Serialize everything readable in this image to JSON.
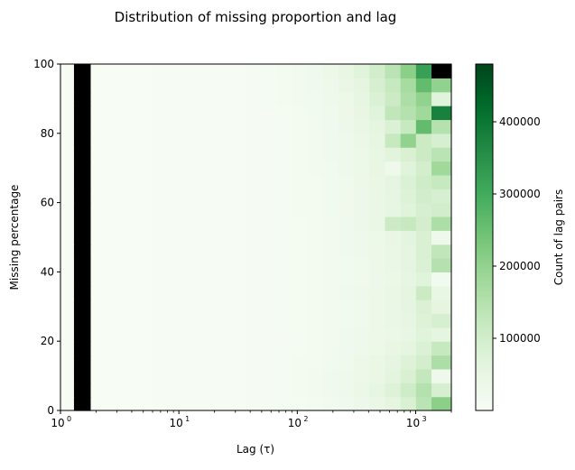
{
  "chart_data": {
    "type": "heatmap",
    "title": "Distribution of missing proportion and lag",
    "xlabel": "Lag (τ)",
    "ylabel": "Missing percentage",
    "x_scale": "log",
    "xlim": [
      1,
      2000
    ],
    "ylim": [
      0,
      100
    ],
    "x_ticks": [
      1,
      10,
      100,
      1000
    ],
    "x_tick_labels": [
      {
        "base": "10",
        "exp": "0"
      },
      {
        "base": "10",
        "exp": "1"
      },
      {
        "base": "10",
        "exp": "2"
      },
      {
        "base": "10",
        "exp": "3"
      }
    ],
    "y_ticks": [
      0,
      20,
      40,
      60,
      80,
      100
    ],
    "y_tick_labels": [
      "0",
      "20",
      "40",
      "60",
      "80",
      "100"
    ],
    "colormap": "Greens",
    "colorbar": {
      "label": "Count of lag pairs",
      "range": [
        0,
        480000
      ],
      "ticks": [
        100000,
        200000,
        300000,
        400000
      ],
      "tick_labels": [
        "100000",
        "200000",
        "300000",
        "400000"
      ]
    },
    "x_bin_edges": [
      1.0,
      1.3,
      1.8,
      2.4,
      3.3,
      4.4,
      6.0,
      8.1,
      10.9,
      14.8,
      20.0,
      27.0,
      36.5,
      49.3,
      66.7,
      90.2,
      121.9,
      164.8,
      222.8,
      301.2,
      407.2,
      550.4,
      744.1,
      1005.9,
      1359.8,
      2000.0
    ],
    "y_bin_edges": [
      0,
      4,
      8,
      12,
      16,
      20,
      24,
      28,
      32,
      36,
      40,
      44,
      48,
      52,
      56,
      60,
      64,
      68,
      72,
      76,
      80,
      84,
      88,
      92,
      96,
      100
    ],
    "z_rows_bottom_to_top": [
      [
        2000,
        480000,
        1000,
        1000,
        1000,
        1000,
        2000,
        2000,
        3000,
        3000,
        4000,
        5000,
        6000,
        7000,
        9000,
        11000,
        14000,
        18000,
        24000,
        32000,
        42000,
        60000,
        85000,
        140000,
        210000
      ],
      [
        2000,
        480000,
        1000,
        1000,
        1000,
        1000,
        2000,
        2000,
        3000,
        3000,
        4000,
        5000,
        6000,
        7000,
        10000,
        12000,
        16000,
        22000,
        30000,
        40000,
        55000,
        75000,
        105000,
        150000,
        90000
      ],
      [
        2000,
        480000,
        1000,
        1000,
        1000,
        1000,
        2000,
        2000,
        3000,
        3000,
        4000,
        5000,
        6000,
        8000,
        10000,
        13000,
        17000,
        22000,
        28000,
        35000,
        45000,
        62000,
        85000,
        125000,
        30000
      ],
      [
        2000,
        480000,
        1000,
        1000,
        1000,
        1000,
        2000,
        2000,
        3000,
        3000,
        4000,
        5000,
        6000,
        7000,
        9000,
        12000,
        15000,
        20000,
        26000,
        34000,
        45000,
        58000,
        75000,
        95000,
        160000
      ],
      [
        2000,
        480000,
        1000,
        1000,
        1000,
        1000,
        2000,
        2000,
        3000,
        3000,
        4000,
        5000,
        6000,
        7000,
        9000,
        11000,
        14000,
        18000,
        23000,
        30000,
        38000,
        48000,
        60000,
        80000,
        120000
      ],
      [
        2000,
        480000,
        1000,
        1000,
        1000,
        1000,
        2000,
        2000,
        3000,
        3000,
        4000,
        5000,
        6000,
        7000,
        8000,
        10000,
        13000,
        17000,
        22000,
        28000,
        34000,
        40000,
        50000,
        70000,
        60000
      ],
      [
        2000,
        480000,
        1000,
        1000,
        1000,
        1000,
        2000,
        2000,
        3000,
        3000,
        4000,
        5000,
        6000,
        7000,
        9000,
        11000,
        14000,
        17000,
        21000,
        27000,
        34000,
        42000,
        55000,
        75000,
        90000
      ],
      [
        2000,
        480000,
        1000,
        1000,
        1000,
        1000,
        2000,
        2000,
        3000,
        3000,
        4000,
        5000,
        6000,
        7000,
        9000,
        11000,
        13000,
        16000,
        20000,
        26000,
        33000,
        42000,
        56000,
        80000,
        60000
      ],
      [
        2000,
        480000,
        1000,
        1000,
        1000,
        1000,
        2000,
        2000,
        3000,
        3000,
        4000,
        5000,
        6000,
        7000,
        9000,
        11000,
        14000,
        17000,
        22000,
        28000,
        35000,
        45000,
        60000,
        110000,
        50000
      ],
      [
        2000,
        480000,
        1000,
        1000,
        1000,
        1000,
        2000,
        2000,
        3000,
        3000,
        4000,
        5000,
        6000,
        7000,
        9000,
        11000,
        13000,
        16000,
        20000,
        25000,
        31000,
        40000,
        52000,
        70000,
        20000
      ],
      [
        2000,
        480000,
        1000,
        1000,
        1000,
        1000,
        2000,
        2000,
        3000,
        3000,
        4000,
        5000,
        6000,
        7000,
        9000,
        11000,
        14000,
        17000,
        21000,
        27000,
        34000,
        43000,
        56000,
        80000,
        150000
      ],
      [
        2000,
        480000,
        1000,
        1000,
        1000,
        1000,
        2000,
        2000,
        3000,
        3000,
        4000,
        5000,
        6000,
        7000,
        9000,
        11000,
        14000,
        17000,
        22000,
        28000,
        35000,
        45000,
        60000,
        85000,
        130000
      ],
      [
        2000,
        480000,
        1000,
        1000,
        1000,
        1000,
        2000,
        2000,
        3000,
        3000,
        4000,
        5000,
        6000,
        7000,
        9000,
        11000,
        14000,
        18000,
        23000,
        30000,
        38000,
        48000,
        62000,
        85000,
        30000
      ],
      [
        2000,
        480000,
        1000,
        1000,
        1000,
        1000,
        2000,
        2000,
        3000,
        3000,
        4000,
        5000,
        6000,
        7000,
        9000,
        11000,
        14000,
        18000,
        24000,
        32000,
        45000,
        110000,
        120000,
        95000,
        160000
      ],
      [
        2000,
        480000,
        1000,
        1000,
        1000,
        1000,
        2000,
        2000,
        3000,
        3000,
        4000,
        5000,
        6000,
        7000,
        9000,
        12000,
        15000,
        19000,
        25000,
        32000,
        42000,
        55000,
        70000,
        90000,
        100000
      ],
      [
        2000,
        480000,
        1000,
        1000,
        1000,
        1000,
        2000,
        2000,
        3000,
        3000,
        4000,
        5000,
        6000,
        7000,
        9000,
        12000,
        15000,
        19000,
        25000,
        32000,
        42000,
        55000,
        75000,
        100000,
        90000
      ],
      [
        2000,
        480000,
        1000,
        1000,
        1000,
        1000,
        2000,
        2000,
        3000,
        3000,
        4000,
        5000,
        6000,
        7000,
        9000,
        12000,
        15000,
        20000,
        26000,
        34000,
        45000,
        58000,
        80000,
        105000,
        120000
      ],
      [
        2000,
        480000,
        1000,
        1000,
        1000,
        1000,
        2000,
        2000,
        3000,
        3000,
        4000,
        5000,
        6000,
        7000,
        9000,
        12000,
        16000,
        21000,
        28000,
        36000,
        48000,
        30000,
        70000,
        95000,
        180000
      ],
      [
        2000,
        480000,
        1000,
        1000,
        1000,
        1000,
        2000,
        2000,
        3000,
        3000,
        4000,
        5000,
        6000,
        7000,
        10000,
        13000,
        17000,
        22000,
        29000,
        38000,
        50000,
        65000,
        85000,
        110000,
        140000
      ],
      [
        2000,
        480000,
        1000,
        1000,
        1000,
        1000,
        2000,
        2000,
        3000,
        3000,
        4000,
        5000,
        6000,
        8000,
        10000,
        13000,
        17000,
        22000,
        30000,
        40000,
        52000,
        120000,
        200000,
        110000,
        90000
      ],
      [
        2000,
        480000,
        1000,
        1000,
        1000,
        1000,
        2000,
        2000,
        3000,
        3000,
        4000,
        5000,
        6000,
        8000,
        10000,
        13000,
        18000,
        24000,
        32000,
        42000,
        60000,
        80000,
        120000,
        260000,
        150000
      ],
      [
        2000,
        480000,
        1000,
        1000,
        1000,
        1000,
        2000,
        2000,
        3000,
        3000,
        4000,
        5000,
        6000,
        8000,
        11000,
        14000,
        19000,
        26000,
        35000,
        48000,
        70000,
        130000,
        150000,
        180000,
        380000
      ],
      [
        2000,
        480000,
        1000,
        1000,
        1000,
        1000,
        2000,
        2000,
        3000,
        3000,
        4000,
        5000,
        7000,
        9000,
        12000,
        16000,
        21000,
        28000,
        38000,
        55000,
        80000,
        110000,
        160000,
        200000,
        70000
      ],
      [
        2000,
        480000,
        1000,
        1000,
        1000,
        1000,
        2000,
        2000,
        3000,
        3000,
        4000,
        5000,
        7000,
        9000,
        12000,
        16000,
        22000,
        30000,
        42000,
        60000,
        90000,
        120000,
        170000,
        260000,
        200000
      ],
      [
        2000,
        480000,
        1000,
        1000,
        1000,
        1000,
        2000,
        2000,
        3000,
        3000,
        4000,
        5000,
        7000,
        9000,
        13000,
        17000,
        24000,
        34000,
        48000,
        70000,
        100000,
        140000,
        210000,
        320000,
        480000
      ]
    ]
  }
}
